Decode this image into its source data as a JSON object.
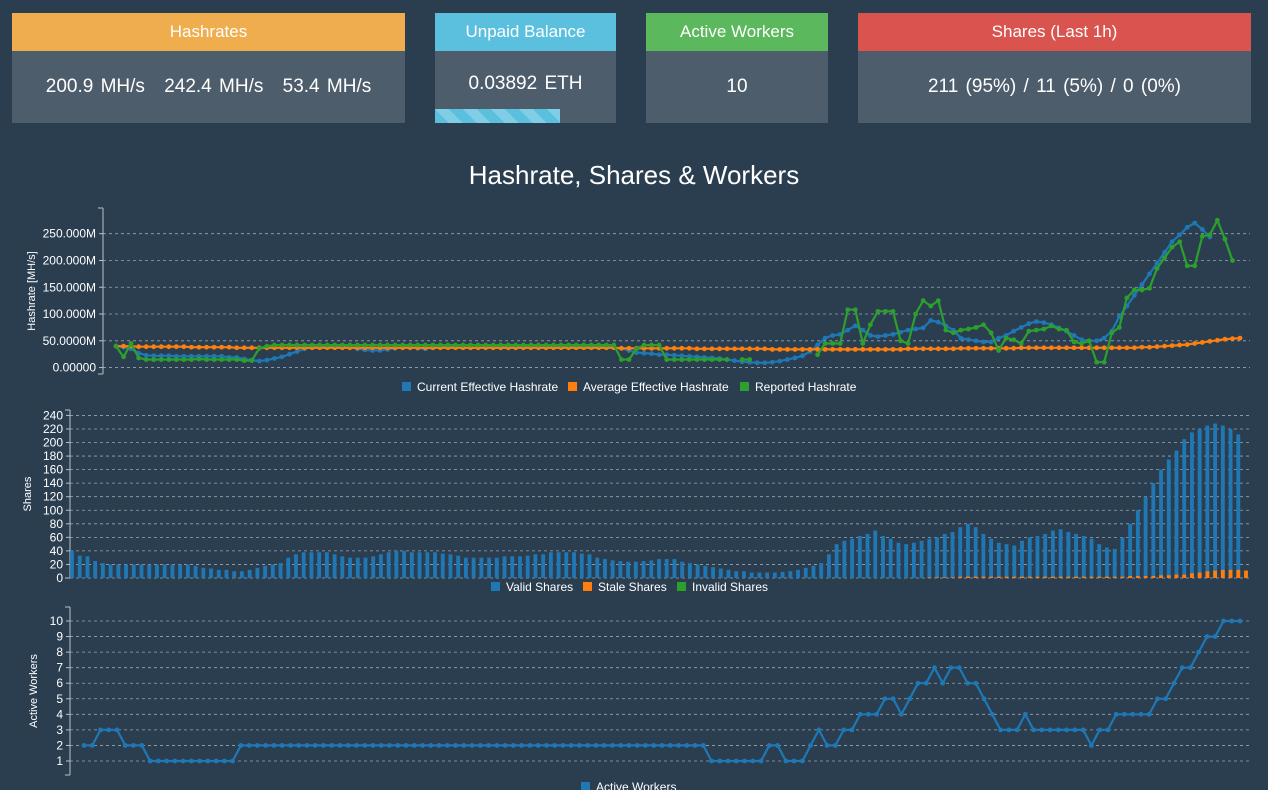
{
  "cards": {
    "hashrates": {
      "title": "Hashrates",
      "values": [
        "200.9 MH/s",
        "242.4 MH/s",
        "53.4 MH/s"
      ]
    },
    "balance": {
      "title": "Unpaid Balance",
      "value": "0.03892 ETH",
      "progress": 0.69
    },
    "workers": {
      "title": "Active Workers",
      "value": "10"
    },
    "shares": {
      "title": "Shares (Last 1h)",
      "value": "211 (95%) / 11 (5%) / 0 (0%)"
    }
  },
  "colors": {
    "blue": "#1f77b4",
    "orange": "#ff7f0e",
    "green": "#2ca02c",
    "hashrates": "#f0ad4e",
    "balance": "#5bc0de",
    "workers": "#5cb85c",
    "shares": "#d9534f"
  },
  "page_title": "Hashrate, Shares & Workers",
  "chart_data": [
    {
      "type": "line",
      "ylabel": "Hashrate [MH/s]",
      "yticks": [
        "0.00000",
        "50.0000M",
        "100.000M",
        "150.000M",
        "200.000M",
        "250.000M"
      ],
      "ytick_values": [
        0,
        50,
        100,
        150,
        200,
        250
      ],
      "ylim": [
        -12,
        298
      ],
      "grid": true,
      "legend_position": "bottom",
      "series": [
        {
          "name": "Current Effective Hashrate",
          "color": "#1f77b4",
          "values": [
            40,
            38,
            35,
            27,
            23,
            22,
            22,
            22,
            21,
            21,
            21,
            21,
            21,
            21,
            21,
            19,
            19,
            16,
            14,
            12,
            14,
            17,
            20,
            25,
            30,
            35,
            38,
            38,
            38,
            38,
            38,
            38,
            35,
            33,
            32,
            32,
            34,
            36,
            38,
            38,
            36,
            35,
            37,
            38,
            38,
            38,
            37,
            37,
            37,
            38,
            38,
            38,
            38,
            38,
            38,
            38,
            38,
            38,
            38,
            38,
            38,
            38,
            38,
            38,
            38,
            38,
            38,
            36,
            32,
            28,
            27,
            26,
            24,
            24,
            23,
            22,
            21,
            20,
            19,
            18,
            17,
            15,
            13,
            11,
            10,
            9,
            9,
            10,
            12,
            15,
            18,
            22,
            30,
            42,
            55,
            60,
            62,
            70,
            78,
            70,
            60,
            58,
            60,
            62,
            66,
            70,
            72,
            74,
            88,
            85,
            78,
            70,
            55,
            52,
            50,
            48,
            48,
            55,
            60,
            68,
            75,
            82,
            86,
            84,
            80,
            74,
            68,
            60,
            52,
            50,
            50,
            55,
            68,
            95,
            115,
            135,
            155,
            175,
            195,
            215,
            235,
            248,
            262,
            270,
            258,
            244
          ]
        },
        {
          "name": "Average Effective Hashrate",
          "color": "#ff7f0e",
          "values": [
            40,
            40,
            40,
            39,
            39,
            39,
            39,
            39,
            39,
            39,
            38,
            38,
            38,
            38,
            38,
            38,
            37,
            37,
            37,
            37,
            37,
            37,
            37,
            37,
            37,
            37,
            37,
            37,
            37,
            37,
            37,
            37,
            37,
            37,
            37,
            37,
            37,
            37,
            37,
            37,
            37,
            37,
            37,
            37,
            37,
            37,
            37,
            37,
            37,
            37,
            37,
            37,
            37,
            37,
            37,
            37,
            37,
            37,
            37,
            37,
            37,
            37,
            37,
            37,
            37,
            37,
            37,
            36,
            36,
            36,
            36,
            36,
            36,
            36,
            36,
            36,
            36,
            35,
            35,
            35,
            35,
            35,
            35,
            35,
            35,
            35,
            35,
            34,
            34,
            34,
            34,
            34,
            34,
            34,
            34,
            34,
            34,
            34,
            34,
            34,
            34,
            34,
            34,
            34,
            34,
            35,
            35,
            35,
            35,
            35,
            35,
            35,
            36,
            36,
            36,
            36,
            36,
            36,
            36,
            36,
            37,
            37,
            37,
            37,
            37,
            37,
            37,
            37,
            37,
            37,
            37,
            37,
            37,
            37,
            37,
            37,
            38,
            38,
            39,
            40,
            41,
            42,
            43,
            45,
            47,
            49,
            51,
            53,
            54,
            55
          ]
        },
        {
          "name": "Reported Hashrate",
          "color": "#2ca02c",
          "values": [
            40,
            20,
            45,
            18,
            15,
            15,
            15,
            15,
            15,
            15,
            15,
            16,
            15,
            15,
            15,
            15,
            15,
            13,
            13,
            36,
            40,
            42,
            42,
            42,
            42,
            42,
            42,
            42,
            42,
            42,
            42,
            42,
            42,
            42,
            42,
            42,
            42,
            42,
            42,
            42,
            42,
            42,
            42,
            42,
            42,
            42,
            42,
            42,
            42,
            42,
            42,
            42,
            42,
            42,
            42,
            42,
            42,
            42,
            42,
            42,
            42,
            42,
            42,
            42,
            42,
            42,
            42,
            15,
            15,
            35,
            42,
            42,
            42,
            15,
            15,
            15,
            15,
            15,
            15,
            15,
            15,
            15,
            null,
            15,
            15,
            null,
            null,
            null,
            null,
            null,
            null,
            null,
            null,
            24,
            45,
            45,
            45,
            108,
            108,
            45,
            80,
            105,
            105,
            105,
            50,
            45,
            100,
            125,
            115,
            125,
            70,
            65,
            70,
            72,
            75,
            80,
            65,
            32,
            55,
            52,
            45,
            68,
            70,
            72,
            78,
            72,
            70,
            48,
            45,
            50,
            10,
            10,
            65,
            75,
            130,
            145,
            145,
            148,
            185,
            205,
            225,
            235,
            190,
            190,
            245,
            248,
            275,
            240,
            200
          ]
        }
      ]
    },
    {
      "type": "bar",
      "ylabel": "Shares",
      "yticks": [
        "0",
        "20",
        "40",
        "60",
        "80",
        "100",
        "120",
        "140",
        "160",
        "180",
        "200",
        "220",
        "240"
      ],
      "ytick_values": [
        0,
        20,
        40,
        60,
        80,
        100,
        120,
        140,
        160,
        180,
        200,
        220,
        240
      ],
      "ylim": [
        0,
        248
      ],
      "grid": true,
      "legend_position": "bottom",
      "series": [
        {
          "name": "Valid Shares",
          "color": "#1f77b4",
          "values": [
            40,
            33,
            32,
            25,
            22,
            20,
            20,
            20,
            20,
            20,
            20,
            20,
            20,
            20,
            20,
            20,
            18,
            15,
            14,
            12,
            12,
            10,
            10,
            12,
            15,
            18,
            20,
            22,
            30,
            35,
            38,
            38,
            38,
            38,
            35,
            32,
            30,
            30,
            30,
            32,
            35,
            38,
            40,
            40,
            38,
            38,
            38,
            38,
            36,
            35,
            33,
            30,
            30,
            30,
            30,
            30,
            32,
            32,
            32,
            33,
            35,
            35,
            38,
            38,
            38,
            38,
            36,
            35,
            30,
            28,
            26,
            25,
            24,
            24,
            25,
            26,
            28,
            28,
            28,
            24,
            22,
            20,
            18,
            16,
            14,
            12,
            10,
            10,
            8,
            8,
            8,
            8,
            9,
            10,
            12,
            15,
            18,
            22,
            35,
            50,
            55,
            58,
            62,
            65,
            70,
            62,
            58,
            52,
            50,
            52,
            55,
            58,
            60,
            65,
            68,
            75,
            80,
            75,
            65,
            58,
            52,
            50,
            48,
            55,
            60,
            62,
            65,
            70,
            72,
            68,
            65,
            62,
            58,
            50,
            45,
            43,
            60,
            80,
            100,
            120,
            140,
            160,
            175,
            188,
            205,
            215,
            220,
            225,
            228,
            225,
            220,
            212
          ]
        },
        {
          "name": "Stale Shares",
          "color": "#ff7f0e",
          "values": [
            0,
            0,
            0,
            0,
            0,
            0,
            0,
            0,
            0,
            0,
            0,
            0,
            0,
            0,
            0,
            0,
            0,
            0,
            0,
            0,
            0,
            0,
            0,
            0,
            0,
            0,
            0,
            0,
            0,
            0,
            0,
            0,
            0,
            0,
            0,
            0,
            0,
            0,
            0,
            0,
            0,
            0,
            0,
            0,
            0,
            0,
            0,
            0,
            0,
            0,
            0,
            0,
            0,
            0,
            0,
            0,
            0,
            0,
            0,
            0,
            0,
            0,
            0,
            0,
            0,
            0,
            0,
            0,
            0,
            0,
            0,
            0,
            0,
            0,
            0,
            0,
            0,
            0,
            0,
            0,
            0,
            0,
            0,
            0,
            0,
            0,
            0,
            0,
            0,
            0,
            0,
            0,
            0,
            0,
            0,
            0,
            0,
            0,
            0,
            0,
            0,
            0,
            0,
            0,
            0,
            0,
            0,
            0,
            0,
            0,
            0,
            1,
            1,
            1,
            1,
            2,
            2,
            2,
            2,
            2,
            2,
            2,
            2,
            2,
            2,
            2,
            2,
            2,
            2,
            2,
            2,
            2,
            2,
            2,
            2,
            2,
            2,
            3,
            3,
            3,
            3,
            4,
            4,
            5,
            5,
            7,
            8,
            10,
            11,
            12,
            12,
            12,
            11
          ]
        },
        {
          "name": "Invalid Shares",
          "color": "#2ca02c",
          "values": []
        }
      ]
    },
    {
      "type": "line",
      "ylabel": "Active Workers",
      "yticks": [
        "1",
        "2",
        "3",
        "4",
        "5",
        "6",
        "7",
        "8",
        "9",
        "10"
      ],
      "ytick_values": [
        1,
        2,
        3,
        4,
        5,
        6,
        7,
        8,
        9,
        10
      ],
      "ylim": [
        0.1,
        10.9
      ],
      "grid": true,
      "legend_position": "bottom",
      "series": [
        {
          "name": "Active Workers",
          "color": "#1f77b4",
          "values": [
            2,
            2,
            3,
            3,
            3,
            2,
            2,
            2,
            1,
            1,
            1,
            1,
            1,
            1,
            1,
            1,
            1,
            1,
            1,
            2,
            2,
            2,
            2,
            2,
            2,
            2,
            2,
            2,
            2,
            2,
            2,
            2,
            2,
            2,
            2,
            2,
            2,
            2,
            2,
            2,
            2,
            2,
            2,
            2,
            2,
            2,
            2,
            2,
            2,
            2,
            2,
            2,
            2,
            2,
            2,
            2,
            2,
            2,
            2,
            2,
            2,
            2,
            2,
            2,
            2,
            2,
            2,
            2,
            2,
            2,
            2,
            2,
            2,
            2,
            2,
            2,
            1,
            1,
            1,
            1,
            1,
            1,
            1,
            2,
            2,
            1,
            1,
            1,
            2,
            3,
            2,
            2,
            3,
            3,
            4,
            4,
            4,
            5,
            5,
            4,
            5,
            6,
            6,
            7,
            6,
            7,
            7,
            6,
            6,
            5,
            4,
            3,
            3,
            3,
            4,
            3,
            3,
            3,
            3,
            3,
            3,
            3,
            2,
            3,
            3,
            4,
            4,
            4,
            4,
            4,
            5,
            5,
            6,
            7,
            7,
            8,
            9,
            9,
            10,
            10,
            10
          ]
        }
      ]
    }
  ]
}
